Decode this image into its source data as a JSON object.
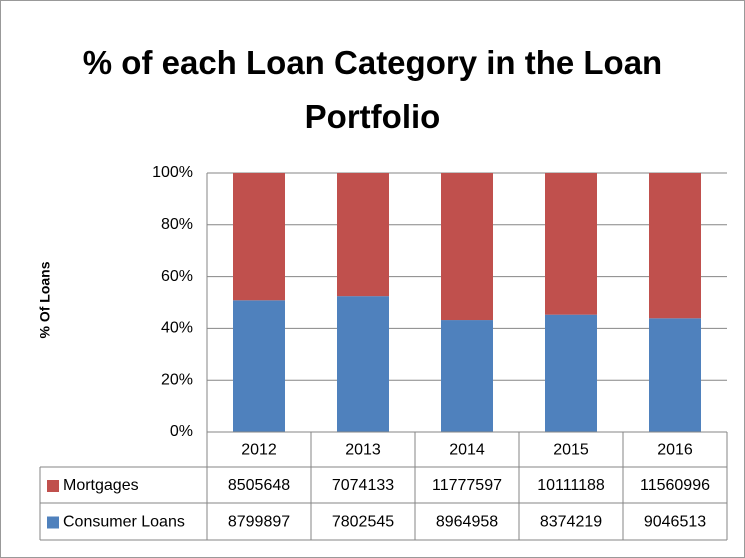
{
  "chart_data": {
    "type": "bar",
    "stacking": "percent",
    "title": "% of each Loan Category in the Loan Portfolio",
    "y_label": "% Of Loans",
    "categories": [
      "2012",
      "2013",
      "2014",
      "2015",
      "2016"
    ],
    "series": [
      {
        "name": "Consumer Loans",
        "color": "#4f81bd",
        "values": [
          8799897,
          7802545,
          8964958,
          8374219,
          9046513
        ]
      },
      {
        "name": "Mortgages",
        "color": "#c0504d",
        "values": [
          8505648,
          7074133,
          11777597,
          10111188,
          11560996
        ]
      }
    ],
    "ylim": [
      0,
      100
    ],
    "yticks": [
      {
        "value": 0,
        "label": "0%"
      },
      {
        "value": 20,
        "label": "20%"
      },
      {
        "value": 40,
        "label": "40%"
      },
      {
        "value": 60,
        "label": "60%"
      },
      {
        "value": 80,
        "label": "80%"
      },
      {
        "value": 100,
        "label": "100%"
      }
    ],
    "grid": true
  }
}
